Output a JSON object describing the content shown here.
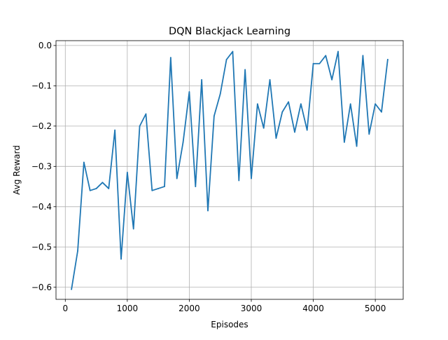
{
  "chart_data": {
    "type": "line",
    "title": "DQN Blackjack Learning",
    "xlabel": "Episodes",
    "ylabel": "Avg Reward",
    "xlim": [
      -150,
      5450
    ],
    "ylim": [
      -0.63,
      0.012
    ],
    "grid": true,
    "x_ticks": [
      0,
      1000,
      2000,
      3000,
      4000,
      5000
    ],
    "x_tick_labels": [
      "0",
      "1000",
      "2000",
      "3000",
      "4000",
      "5000"
    ],
    "y_ticks": [
      -0.6,
      -0.5,
      -0.4,
      -0.3,
      -0.2,
      -0.1,
      0.0
    ],
    "y_tick_labels": [
      "−0.6",
      "−0.5",
      "−0.4",
      "−0.3",
      "−0.2",
      "−0.1",
      "0.0"
    ],
    "series": [
      {
        "color": "#1f77b4",
        "x": [
          100,
          200,
          300,
          400,
          500,
          600,
          700,
          800,
          900,
          1000,
          1100,
          1200,
          1300,
          1400,
          1500,
          1600,
          1700,
          1800,
          1900,
          2000,
          2100,
          2200,
          2300,
          2400,
          2500,
          2600,
          2700,
          2800,
          2900,
          3000,
          3100,
          3200,
          3300,
          3400,
          3500,
          3600,
          3700,
          3800,
          3900,
          4000,
          4100,
          4200,
          4300,
          4400,
          4500,
          4600,
          4700,
          4800,
          4900,
          5000,
          5100,
          5200
        ],
        "values": [
          -0.605,
          -0.51,
          -0.29,
          -0.36,
          -0.355,
          -0.34,
          -0.355,
          -0.21,
          -0.53,
          -0.315,
          -0.455,
          -0.2,
          -0.17,
          -0.36,
          -0.355,
          -0.35,
          -0.03,
          -0.33,
          -0.24,
          -0.115,
          -0.35,
          -0.085,
          -0.41,
          -0.175,
          -0.12,
          -0.035,
          -0.015,
          -0.335,
          -0.06,
          -0.33,
          -0.145,
          -0.205,
          -0.085,
          -0.23,
          -0.165,
          -0.14,
          -0.215,
          -0.145,
          -0.21,
          -0.045,
          -0.045,
          -0.025,
          -0.085,
          -0.015,
          -0.24,
          -0.145,
          -0.25,
          -0.025,
          -0.22,
          -0.145,
          -0.165,
          -0.035
        ]
      }
    ]
  }
}
